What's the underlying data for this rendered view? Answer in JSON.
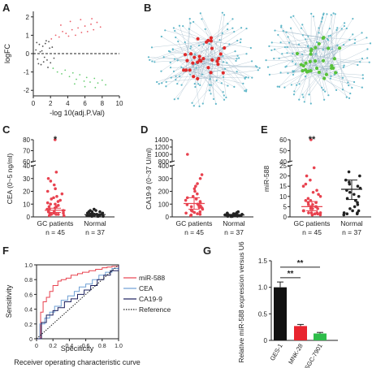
{
  "panel_letters": [
    "A",
    "B",
    "C",
    "D",
    "E",
    "F",
    "G"
  ],
  "chart_data": [
    {
      "panel": "A",
      "type": "scatter",
      "title": "",
      "xlabel": "-log 10(adj.P.Val)",
      "ylabel": "logFC",
      "xticks": [
        0,
        2,
        4,
        6,
        8,
        10
      ],
      "yticks": [
        -2,
        -1,
        0,
        1,
        2
      ],
      "xlim": [
        0,
        10
      ],
      "ylim": [
        -2.3,
        2.3
      ],
      "reference_line_y": 0,
      "series": [
        {
          "color": "#e8424f",
          "points": [
            [
              2.1,
              0.8
            ],
            [
              2.6,
              1.0
            ],
            [
              3.0,
              0.9
            ],
            [
              3.4,
              1.2
            ],
            [
              3.8,
              1.1
            ],
            [
              4.1,
              0.95
            ],
            [
              4.5,
              1.3
            ],
            [
              4.9,
              1.0
            ],
            [
              5.2,
              1.4
            ],
            [
              5.6,
              1.15
            ],
            [
              6.0,
              1.5
            ],
            [
              6.3,
              1.2
            ],
            [
              6.7,
              1.6
            ],
            [
              7.0,
              1.3
            ],
            [
              7.4,
              1.7
            ],
            [
              7.8,
              1.45
            ],
            [
              3.2,
              1.55
            ],
            [
              4.3,
              1.75
            ],
            [
              5.5,
              1.85
            ],
            [
              6.8,
              1.9
            ]
          ]
        },
        {
          "color": "#4fc45a",
          "points": [
            [
              2.3,
              -0.8
            ],
            [
              2.8,
              -1.0
            ],
            [
              3.3,
              -1.1
            ],
            [
              3.7,
              -0.9
            ],
            [
              4.2,
              -1.25
            ],
            [
              4.6,
              -1.05
            ],
            [
              5.0,
              -1.4
            ],
            [
              5.4,
              -1.15
            ],
            [
              5.9,
              -1.5
            ],
            [
              6.2,
              -1.3
            ],
            [
              6.6,
              -1.55
            ],
            [
              7.1,
              -1.35
            ],
            [
              7.5,
              -1.6
            ],
            [
              8.0,
              -1.45
            ],
            [
              8.4,
              -1.7
            ],
            [
              6.0,
              -1.8
            ],
            [
              7.2,
              -1.85
            ],
            [
              4.8,
              -1.65
            ]
          ]
        },
        {
          "color": "#333333",
          "points": [
            [
              0.3,
              0.2
            ],
            [
              0.5,
              -0.3
            ],
            [
              0.7,
              0.5
            ],
            [
              0.9,
              -0.6
            ],
            [
              1.1,
              0.4
            ],
            [
              1.3,
              -0.2
            ],
            [
              1.5,
              0.7
            ],
            [
              1.7,
              -0.75
            ],
            [
              1.9,
              0.3
            ],
            [
              0.4,
              0.6
            ],
            [
              0.6,
              -0.55
            ],
            [
              1.0,
              0.15
            ],
            [
              1.2,
              -0.45
            ],
            [
              1.4,
              0.55
            ],
            [
              1.6,
              -0.35
            ],
            [
              1.8,
              0.65
            ],
            [
              2.0,
              -0.5
            ],
            [
              2.2,
              0.35
            ],
            [
              2.4,
              -0.25
            ],
            [
              0.8,
              0.1
            ]
          ]
        }
      ]
    },
    {
      "panel": "C",
      "type": "scatter",
      "title": "",
      "ylabel": "CEA (0~5 ng/ml)",
      "categories": [
        "GC patients",
        "Normal"
      ],
      "category_notes": [
        "n = 45",
        "n = 37"
      ],
      "axis_break": {
        "lower": [
          0,
          40
        ],
        "upper": [
          60,
          80
        ]
      },
      "yticks": [
        0,
        10,
        20,
        30,
        40,
        60,
        70,
        80
      ],
      "significance": "*",
      "series": [
        {
          "name": "GC patients",
          "color": "#e8424f",
          "mean": 5.2,
          "sd": [
            3.5,
            6.8
          ],
          "values": [
            80,
            35,
            30,
            28,
            25,
            22,
            20,
            18,
            16,
            15,
            14,
            13,
            12,
            11,
            10,
            10,
            9,
            8,
            8,
            7,
            6,
            6,
            5,
            5,
            4,
            4,
            3,
            3,
            3,
            2,
            2,
            2,
            1,
            1
          ]
        },
        {
          "name": "Normal",
          "color": "#222222",
          "mean": 1.8,
          "sd": [
            1.2,
            2.3
          ],
          "values": [
            6,
            5,
            5,
            4,
            4,
            4,
            3,
            3,
            3,
            3,
            2,
            2,
            2,
            2,
            2,
            2,
            1,
            1,
            1,
            1,
            1,
            1,
            1,
            1,
            0.5,
            0.5,
            0.5,
            0.5
          ]
        }
      ]
    },
    {
      "panel": "D",
      "type": "scatter",
      "title": "",
      "ylabel": "CA19-9 (0~37 U/ml)",
      "categories": [
        "GC patients",
        "Normal"
      ],
      "category_notes": [
        "n = 45",
        "n = 37"
      ],
      "axis_break": {
        "lower": [
          0,
          400
        ],
        "upper": [
          800,
          1400
        ]
      },
      "yticks": [
        0,
        100,
        200,
        300,
        400,
        800,
        1000,
        1200,
        1400
      ],
      "significance": "",
      "series": [
        {
          "name": "GC patients",
          "color": "#e8424f",
          "mean": 105,
          "sd": [
            60,
            150
          ],
          "values": [
            1000,
            330,
            300,
            260,
            240,
            220,
            200,
            180,
            160,
            150,
            140,
            130,
            120,
            110,
            100,
            95,
            90,
            85,
            80,
            75,
            70,
            60,
            55,
            50,
            45,
            40,
            35,
            30,
            25,
            20,
            15,
            10
          ]
        },
        {
          "name": "Normal",
          "color": "#222222",
          "mean": 15,
          "sd": [
            10,
            20
          ],
          "values": [
            40,
            35,
            30,
            28,
            25,
            22,
            20,
            18,
            16,
            15,
            14,
            13,
            12,
            11,
            10,
            9,
            8,
            7,
            6,
            5,
            4,
            3
          ]
        }
      ]
    },
    {
      "panel": "E",
      "type": "scatter",
      "title": "",
      "ylabel": "miR-588",
      "categories": [
        "GC patients",
        "Normal"
      ],
      "category_notes": [
        "n = 45",
        "n = 37"
      ],
      "axis_break": {
        "lower": [
          0,
          25
        ],
        "upper": [
          40,
          60
        ]
      },
      "yticks": [
        0,
        5,
        10,
        15,
        20,
        25,
        40,
        50,
        60
      ],
      "significance": "**",
      "series": [
        {
          "name": "GC patients",
          "color": "#e8424f",
          "mean": 5.0,
          "sd": [
            3.0,
            7.5
          ],
          "values": [
            60,
            24,
            20,
            18,
            16,
            15,
            13,
            12,
            11,
            10,
            9,
            8,
            8,
            7,
            7,
            6,
            6,
            5,
            5,
            5,
            4,
            4,
            4,
            3,
            3,
            3,
            2,
            2,
            2,
            2,
            1.5,
            1.5,
            1,
            1,
            1
          ]
        },
        {
          "name": "Normal",
          "color": "#222222",
          "mean": 13.5,
          "sd": [
            8.5,
            18.0
          ],
          "values": [
            22,
            20,
            18,
            17,
            16,
            15,
            14,
            13,
            12,
            11,
            10,
            9,
            8,
            7,
            6,
            5,
            4,
            3,
            3,
            2,
            2,
            1.5,
            1.5,
            1
          ]
        }
      ]
    },
    {
      "panel": "F",
      "type": "line",
      "title": "Receiver operating characteristic curve",
      "xlabel": "Specificity",
      "ylabel": "Sensitivity",
      "xticks": [
        "0",
        "0.2",
        "0.4",
        "0.6",
        "0.8",
        "1.0"
      ],
      "yticks": [
        "0",
        "0.2",
        "0.4",
        "0.6",
        "0.8",
        "1.0"
      ],
      "xlim": [
        0,
        1
      ],
      "ylim": [
        0,
        1
      ],
      "series": [
        {
          "name": "miR-588",
          "color": "#e8424f",
          "style": "solid",
          "x": [
            0,
            0.05,
            0.08,
            0.12,
            0.16,
            0.2,
            0.26,
            0.3,
            0.36,
            0.42,
            0.5,
            0.56,
            0.64,
            0.72,
            0.8,
            0.86,
            0.92,
            1.0
          ],
          "y": [
            0,
            0.36,
            0.5,
            0.56,
            0.64,
            0.72,
            0.78,
            0.8,
            0.82,
            0.86,
            0.88,
            0.9,
            0.92,
            0.94,
            0.96,
            0.97,
            0.98,
            1.0
          ]
        },
        {
          "name": "CEA",
          "color": "#6e9fd4",
          "style": "solid",
          "x": [
            0,
            0.04,
            0.1,
            0.16,
            0.22,
            0.3,
            0.38,
            0.46,
            0.52,
            0.6,
            0.68,
            0.76,
            0.84,
            0.92,
            1.0
          ],
          "y": [
            0,
            0.2,
            0.28,
            0.36,
            0.44,
            0.52,
            0.58,
            0.64,
            0.7,
            0.74,
            0.8,
            0.86,
            0.9,
            0.95,
            1.0
          ]
        },
        {
          "name": "CA19-9",
          "color": "#1b1f5e",
          "style": "solid",
          "x": [
            0,
            0.06,
            0.12,
            0.2,
            0.26,
            0.34,
            0.42,
            0.5,
            0.58,
            0.66,
            0.74,
            0.82,
            0.9,
            1.0
          ],
          "y": [
            0,
            0.22,
            0.32,
            0.38,
            0.42,
            0.5,
            0.54,
            0.6,
            0.66,
            0.72,
            0.8,
            0.86,
            0.92,
            1.0
          ]
        },
        {
          "name": "Reference",
          "color": "#222222",
          "style": "dotted",
          "x": [
            0,
            1
          ],
          "y": [
            0,
            1
          ]
        }
      ]
    },
    {
      "panel": "G",
      "type": "bar",
      "title": "",
      "ylabel": "Relative miR-588 expression versus U6",
      "categories": [
        "GES-1",
        "MNK-28",
        "SGC-7901"
      ],
      "values": [
        1.0,
        0.27,
        0.13
      ],
      "errors": [
        0.1,
        0.03,
        0.02
      ],
      "colors": [
        "#111111",
        "#e8242e",
        "#2ebd4a"
      ],
      "yticks": [
        "0",
        "0.5",
        "1.0",
        "1.5"
      ],
      "ylim": [
        0,
        1.5
      ],
      "significance": [
        {
          "between": [
            "GES-1",
            "MNK-28"
          ],
          "label": "**"
        },
        {
          "between": [
            "GES-1",
            "SGC-7901"
          ],
          "label": "**"
        }
      ]
    }
  ]
}
